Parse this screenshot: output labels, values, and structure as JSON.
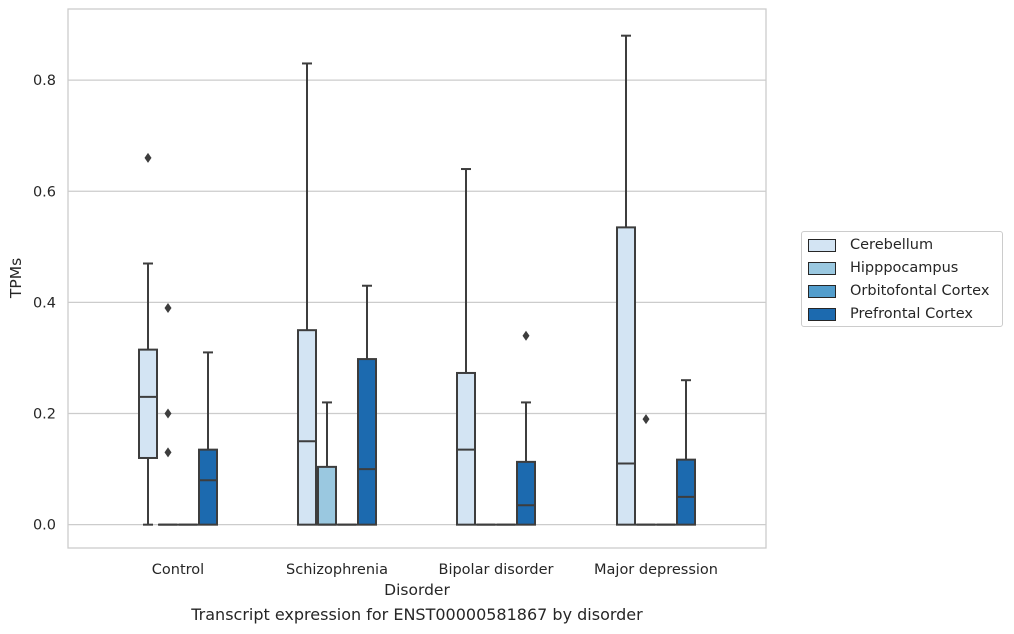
{
  "caption": "Transcript expression for ENST00000581867 by disorder",
  "chart_data": {
    "type": "box",
    "xlabel": "Disorder",
    "ylabel": "TPMs",
    "categories": [
      "Control",
      "Schizophrenia",
      "Bipolar disorder",
      "Major depression"
    ],
    "ylim": [
      -0.042,
      0.928
    ],
    "yticks": [
      0.0,
      0.2,
      0.4,
      0.6,
      0.8
    ],
    "ytick_labels": [
      "0.0",
      "0.2",
      "0.4",
      "0.6",
      "0.8"
    ],
    "grid": "horizontal",
    "legend_position": "center-right outside",
    "series": [
      {
        "name": "Cerebellum",
        "color": "#d3e4f3",
        "boxes": [
          {
            "whislo": 0.0,
            "q1": 0.12,
            "med": 0.23,
            "q3": 0.315,
            "whishi": 0.47,
            "fliers": [
              0.66
            ]
          },
          {
            "whislo": 0.0,
            "q1": 0.0,
            "med": 0.15,
            "q3": 0.35,
            "whishi": 0.83,
            "fliers": []
          },
          {
            "whislo": 0.0,
            "q1": 0.0,
            "med": 0.135,
            "q3": 0.273,
            "whishi": 0.64,
            "fliers": []
          },
          {
            "whislo": 0.0,
            "q1": 0.0,
            "med": 0.11,
            "q3": 0.535,
            "whishi": 0.88,
            "fliers": []
          }
        ]
      },
      {
        "name": "Hipppocampus",
        "color": "#9ac8e0",
        "boxes": [
          {
            "whislo": 0.0,
            "q1": 0.0,
            "med": 0.0,
            "q3": 0.0,
            "whishi": 0.0,
            "fliers": [
              0.13,
              0.2,
              0.39
            ]
          },
          {
            "whislo": 0.0,
            "q1": 0.0,
            "med": 0.0,
            "q3": 0.104,
            "whishi": 0.22,
            "fliers": []
          },
          {
            "whislo": 0.0,
            "q1": 0.0,
            "med": 0.0,
            "q3": 0.0,
            "whishi": 0.0,
            "fliers": []
          },
          {
            "whislo": 0.0,
            "q1": 0.0,
            "med": 0.0,
            "q3": 0.0,
            "whishi": 0.0,
            "fliers": [
              0.19
            ]
          }
        ]
      },
      {
        "name": "Orbitofontal Cortex",
        "color": "#529dcc",
        "boxes": [
          {
            "whislo": 0.0,
            "q1": 0.0,
            "med": 0.0,
            "q3": 0.0,
            "whishi": 0.0,
            "fliers": []
          },
          {
            "whislo": 0.0,
            "q1": 0.0,
            "med": 0.0,
            "q3": 0.0,
            "whishi": 0.0,
            "fliers": []
          },
          {
            "whislo": 0.0,
            "q1": 0.0,
            "med": 0.0,
            "q3": 0.0,
            "whishi": 0.0,
            "fliers": []
          },
          {
            "whislo": 0.0,
            "q1": 0.0,
            "med": 0.0,
            "q3": 0.0,
            "whishi": 0.0,
            "fliers": []
          }
        ]
      },
      {
        "name": "Prefrontal Cortex",
        "color": "#1c6aaf",
        "boxes": [
          {
            "whislo": 0.0,
            "q1": 0.0,
            "med": 0.08,
            "q3": 0.135,
            "whishi": 0.31,
            "fliers": []
          },
          {
            "whislo": 0.0,
            "q1": 0.0,
            "med": 0.1,
            "q3": 0.298,
            "whishi": 0.43,
            "fliers": []
          },
          {
            "whislo": 0.0,
            "q1": 0.0,
            "med": 0.035,
            "q3": 0.113,
            "whishi": 0.22,
            "fliers": [
              0.34
            ]
          },
          {
            "whislo": 0.0,
            "q1": 0.0,
            "med": 0.05,
            "q3": 0.117,
            "whishi": 0.26,
            "fliers": []
          }
        ]
      }
    ]
  }
}
